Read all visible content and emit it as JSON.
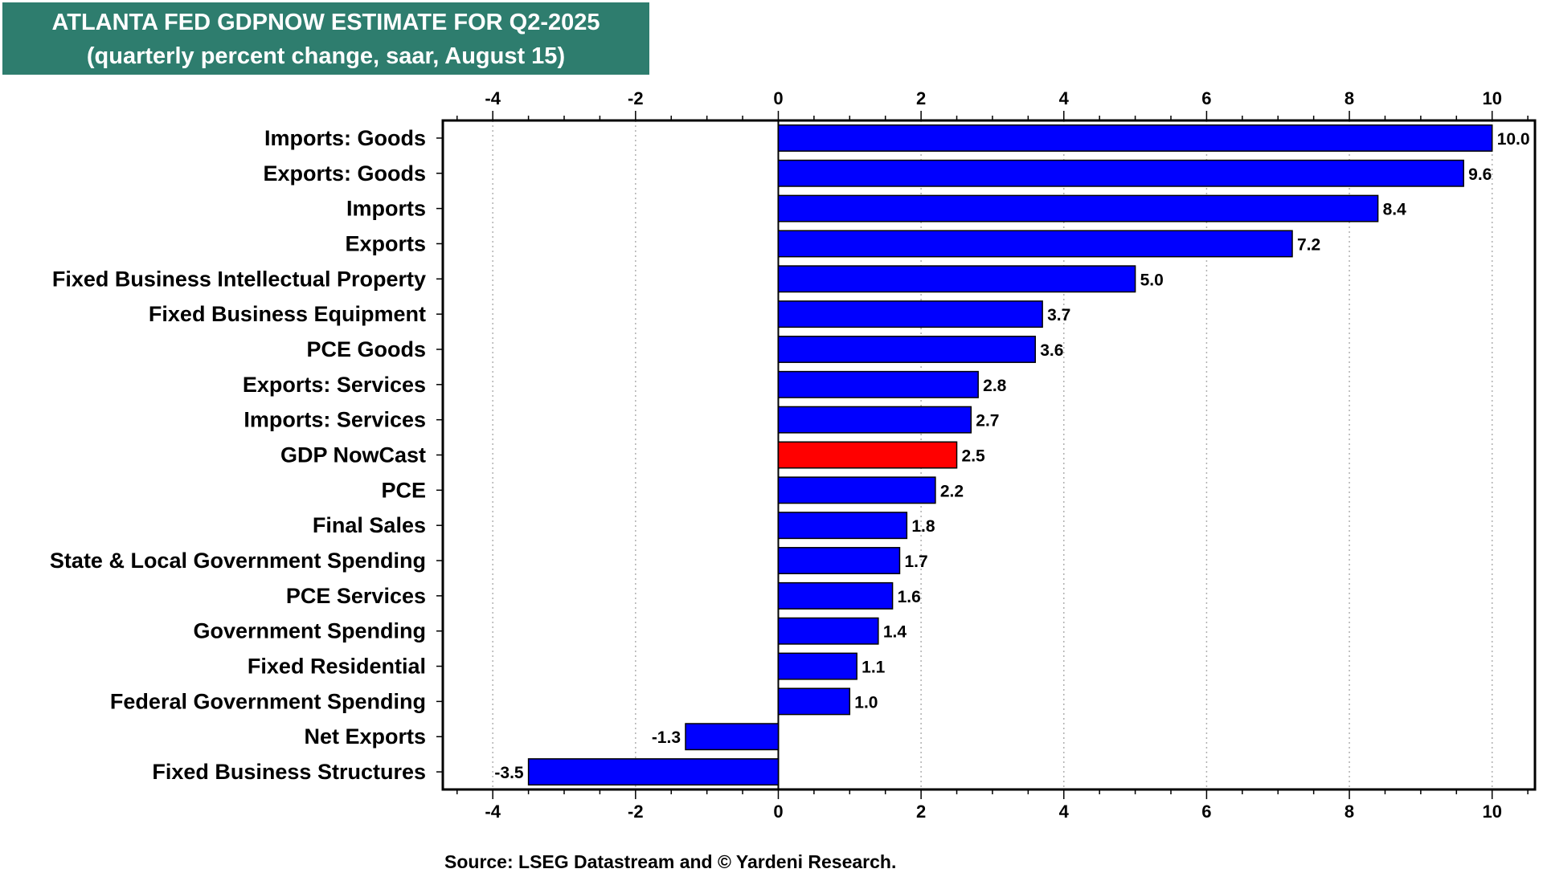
{
  "chart_data": {
    "type": "bar",
    "orientation": "horizontal",
    "title": "ATLANTA FED GDPNOW ESTIMATE FOR Q2-2025",
    "subtitle": "(quarterly percent change, saar, August 15)",
    "categories": [
      "Imports: Goods",
      "Exports: Goods",
      "Imports",
      "Exports",
      "Fixed Business Intellectual Property",
      "Fixed Business Equipment",
      "PCE Goods",
      "Exports: Services",
      "Imports: Services",
      "GDP NowCast",
      "PCE",
      "Final Sales",
      "State & Local Government Spending",
      "PCE Services",
      "Government Spending",
      "Fixed Residential",
      "Federal Government Spending",
      "Net Exports",
      "Fixed Business Structures"
    ],
    "values": [
      10.0,
      9.6,
      8.4,
      7.2,
      5.0,
      3.7,
      3.6,
      2.8,
      2.7,
      2.5,
      2.2,
      1.8,
      1.7,
      1.6,
      1.4,
      1.1,
      1.0,
      -1.3,
      -3.5
    ],
    "value_labels": [
      "10.0",
      "9.6",
      "8.4",
      "7.2",
      "5.0",
      "3.7",
      "3.6",
      "2.8",
      "2.7",
      "2.5",
      "2.2",
      "1.8",
      "1.7",
      "1.6",
      "1.4",
      "1.1",
      "1.0",
      "-1.3",
      "-3.5"
    ],
    "highlight_category": "GDP NowCast",
    "xlim": [
      -4.7,
      10.6
    ],
    "xticks": [
      -4,
      -2,
      0,
      2,
      4,
      6,
      8,
      10
    ],
    "xtick_labels": [
      "-4",
      "-2",
      "0",
      "2",
      "4",
      "6",
      "8",
      "10"
    ],
    "grid": true,
    "xlabel": "",
    "ylabel": ""
  },
  "colors": {
    "bar": "#0000ff",
    "highlight": "#ff0000",
    "title_bg": "#2e7d6e",
    "title_text": "#ffffff"
  },
  "source": "Source: LSEG Datastream and © Yardeni Research."
}
